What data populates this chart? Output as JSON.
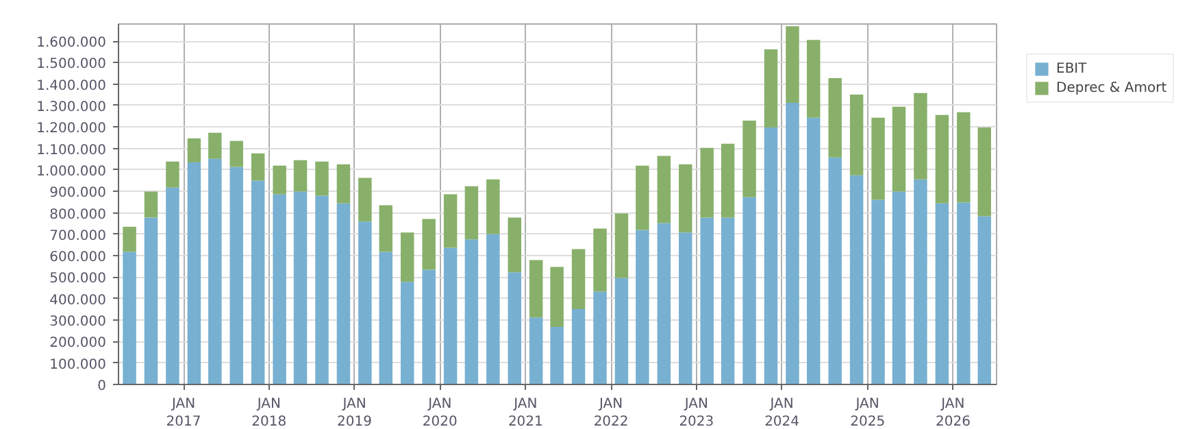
{
  "chart_data": {
    "type": "bar",
    "stacked": true,
    "x": [
      "2016-05-15",
      "2016-08-15",
      "2016-11-15",
      "2017-02-15",
      "2017-05-15",
      "2017-08-15",
      "2017-11-15",
      "2018-02-15",
      "2018-05-15",
      "2018-08-15",
      "2018-11-15",
      "2019-02-15",
      "2019-05-15",
      "2019-08-15",
      "2019-11-15",
      "2020-02-15",
      "2020-05-15",
      "2020-08-15",
      "2020-11-15",
      "2021-02-15",
      "2021-05-15",
      "2021-08-15",
      "2021-11-15",
      "2022-02-15",
      "2022-05-15",
      "2022-08-15",
      "2022-11-15",
      "2023-02-15",
      "2023-05-15",
      "2023-08-15",
      "2023-11-15",
      "2024-02-15",
      "2024-05-15",
      "2024-08-15",
      "2024-11-15",
      "2025-02-15",
      "2025-05-15",
      "2025-08-15",
      "2025-11-15",
      "2026-02-15",
      "2026-05-15"
    ],
    "series": [
      {
        "name": "EBIT",
        "color": "#77b0d1",
        "values": [
          618000,
          778000,
          918000,
          1035000,
          1052000,
          1014000,
          950000,
          886000,
          899000,
          880000,
          844000,
          759000,
          618000,
          478000,
          535000,
          637000,
          676000,
          701000,
          523000,
          312000,
          268000,
          351000,
          433000,
          497000,
          720000,
          752000,
          708000,
          778000,
          778000,
          873000,
          1198000,
          1313000,
          1243000,
          1058000,
          975000,
          861000,
          899000,
          956000,
          844000,
          848000,
          784000
        ]
      },
      {
        "name": "Deprec & Amort",
        "color": "#88b06a",
        "values": [
          117000,
          121000,
          121000,
          112000,
          121000,
          121000,
          127000,
          134000,
          146000,
          159000,
          182000,
          204000,
          217000,
          230000,
          236000,
          249000,
          248000,
          255000,
          255000,
          268000,
          280000,
          280000,
          294000,
          300000,
          300000,
          313000,
          318000,
          325000,
          344000,
          357000,
          364000,
          357000,
          363000,
          370000,
          376000,
          382000,
          395000,
          402000,
          412000,
          421000,
          414000
        ]
      }
    ],
    "xlim": [
      "2016-03-29",
      "2026-07-06"
    ],
    "xticks": [
      {
        "value": "2017-01-01",
        "label": "JAN\n2017"
      },
      {
        "value": "2018-01-01",
        "label": "JAN\n2018"
      },
      {
        "value": "2019-01-01",
        "label": "JAN\n2019"
      },
      {
        "value": "2020-01-01",
        "label": "JAN\n2020"
      },
      {
        "value": "2021-01-01",
        "label": "JAN\n2021"
      },
      {
        "value": "2022-01-01",
        "label": "JAN\n2022"
      },
      {
        "value": "2023-01-01",
        "label": "JAN\n2023"
      },
      {
        "value": "2024-01-01",
        "label": "JAN\n2024"
      },
      {
        "value": "2025-01-01",
        "label": "JAN\n2025"
      },
      {
        "value": "2026-01-01",
        "label": "JAN\n2026"
      }
    ],
    "ylim": [
      0,
      1680000
    ],
    "yticks": [
      {
        "value": 0,
        "label": "0"
      },
      {
        "value": 100000,
        "label": "100.000"
      },
      {
        "value": 200000,
        "label": "200.000"
      },
      {
        "value": 300000,
        "label": "300.000"
      },
      {
        "value": 400000,
        "label": "400.000"
      },
      {
        "value": 500000,
        "label": "500.000"
      },
      {
        "value": 600000,
        "label": "600.000"
      },
      {
        "value": 700000,
        "label": "700.000"
      },
      {
        "value": 800000,
        "label": "800.000"
      },
      {
        "value": 900000,
        "label": "900.000"
      },
      {
        "value": 1000000,
        "label": "1.000.000"
      },
      {
        "value": 1100000,
        "label": "1.100.000"
      },
      {
        "value": 1200000,
        "label": "1.200.000"
      },
      {
        "value": 1300000,
        "label": "1.300.000"
      },
      {
        "value": 1400000,
        "label": "1.400.000"
      },
      {
        "value": 1500000,
        "label": "1.500.000"
      },
      {
        "value": 1600000,
        "label": "1.600.000"
      }
    ],
    "grid": true,
    "legend": "top right"
  }
}
